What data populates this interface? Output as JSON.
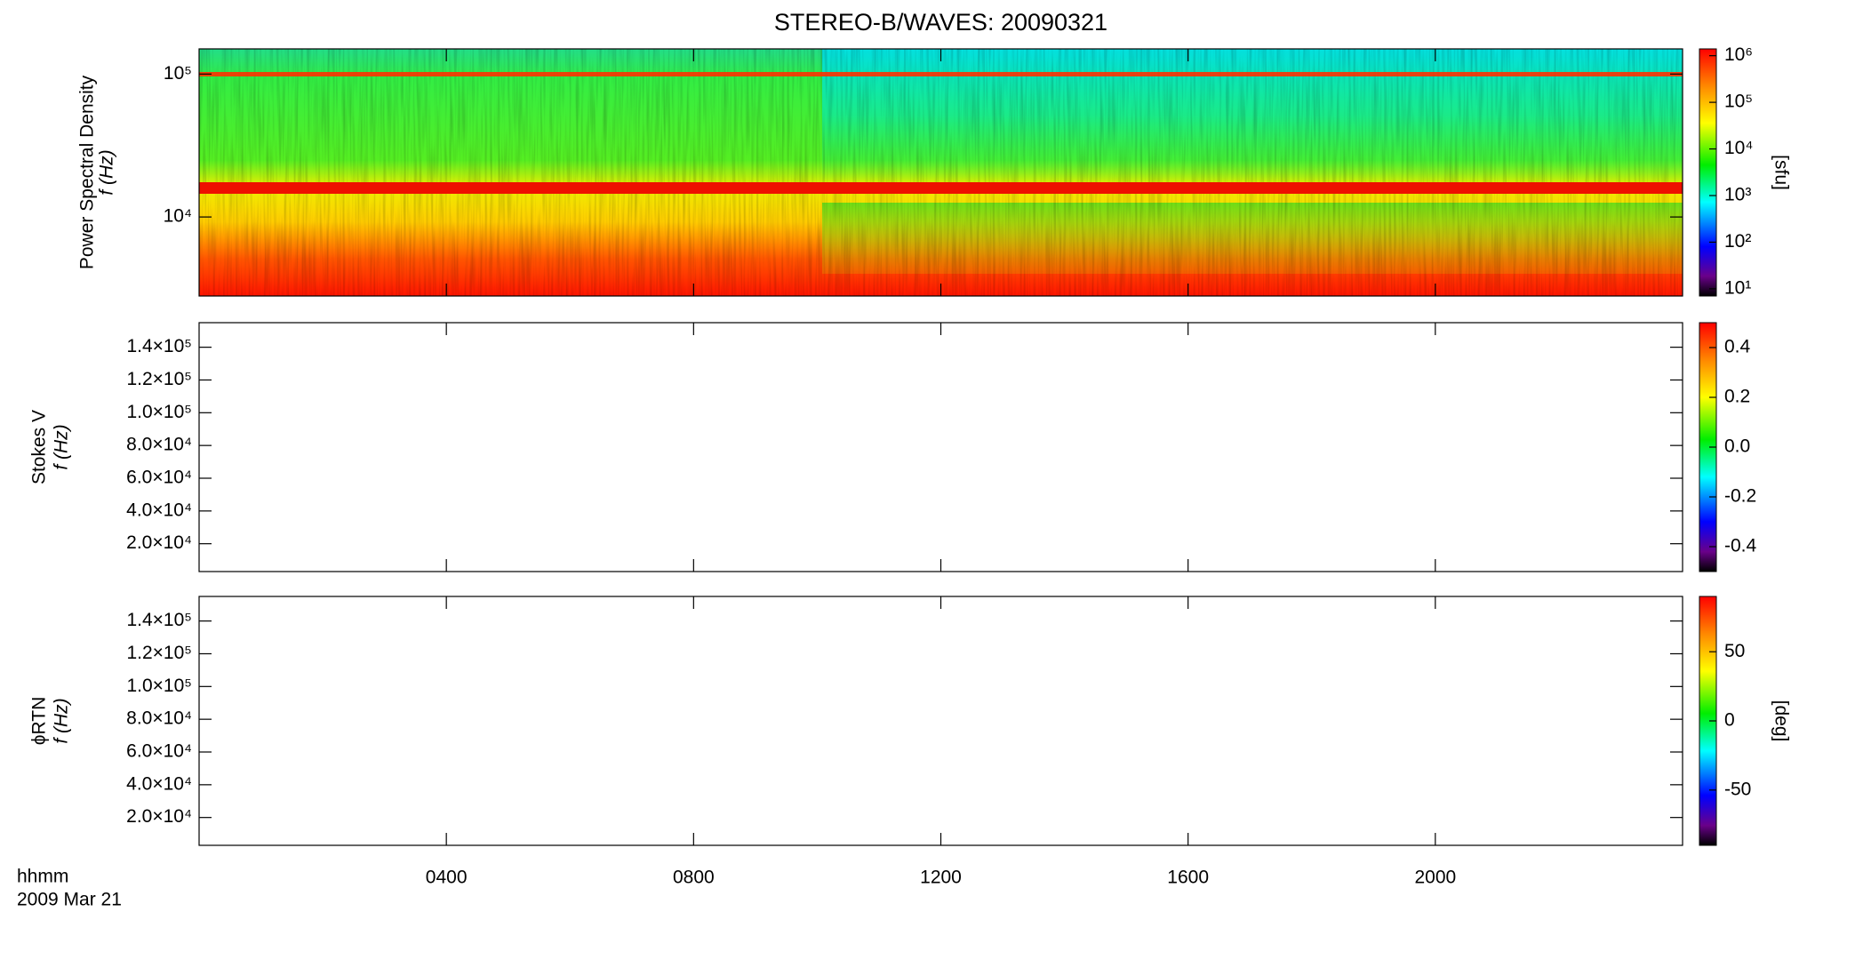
{
  "chart_data": [
    {
      "type": "spectrogram",
      "title": "STEREO-B/WAVES: 20090321",
      "ylabel": [
        "Power Spectral Density",
        "f (Hz)"
      ],
      "ylog": true,
      "ylim": [
        2800,
        150000
      ],
      "yticks": [
        {
          "value": 10000,
          "label": "10⁴"
        },
        {
          "value": 100000,
          "label": "10⁵"
        }
      ],
      "colorbar": {
        "label": "[sfu]",
        "log": true,
        "lim": [
          7,
          1400000
        ],
        "ticks": [
          {
            "value": 10,
            "label": "10¹"
          },
          {
            "value": 100,
            "label": "10²"
          },
          {
            "value": 1000,
            "label": "10³"
          },
          {
            "value": 10000,
            "label": "10⁴"
          },
          {
            "value": 100000,
            "label": "10⁵"
          },
          {
            "value": 1000000,
            "label": "10⁶"
          }
        ]
      }
    },
    {
      "type": "spectrogram",
      "ylabel": [
        "Stokes V",
        "f (Hz)"
      ],
      "ylog": false,
      "ylim": [
        3000,
        155000
      ],
      "yticks": [
        {
          "value": 20000,
          "label": "2.0×10⁴"
        },
        {
          "value": 40000,
          "label": "4.0×10⁴"
        },
        {
          "value": 60000,
          "label": "6.0×10⁴"
        },
        {
          "value": 80000,
          "label": "8.0×10⁴"
        },
        {
          "value": 100000,
          "label": "1.0×10⁵"
        },
        {
          "value": 120000,
          "label": "1.2×10⁵"
        },
        {
          "value": 140000,
          "label": "1.4×10⁵"
        }
      ],
      "colorbar": {
        "log": false,
        "lim": [
          -0.5,
          0.5
        ],
        "ticks": [
          {
            "value": -0.4,
            "label": "-0.4"
          },
          {
            "value": -0.2,
            "label": "-0.2"
          },
          {
            "value": 0,
            "label": "0.0"
          },
          {
            "value": 0.2,
            "label": "0.2"
          },
          {
            "value": 0.4,
            "label": "0.4"
          }
        ]
      }
    },
    {
      "type": "spectrogram",
      "ylabel": [
        "ϕRTN",
        "f (Hz)"
      ],
      "ylog": false,
      "ylim": [
        3000,
        155000
      ],
      "yticks": [
        {
          "value": 20000,
          "label": "2.0×10⁴"
        },
        {
          "value": 40000,
          "label": "4.0×10⁴"
        },
        {
          "value": 60000,
          "label": "6.0×10⁴"
        },
        {
          "value": 80000,
          "label": "8.0×10⁴"
        },
        {
          "value": 100000,
          "label": "1.0×10⁵"
        },
        {
          "value": 120000,
          "label": "1.2×10⁵"
        },
        {
          "value": 140000,
          "label": "1.4×10⁵"
        }
      ],
      "colorbar": {
        "label": "[deg]",
        "log": false,
        "lim": [
          -90,
          90
        ],
        "ticks": [
          -50,
          0,
          50
        ]
      },
      "xlabel": "hhmm",
      "date": "2009 Mar 21",
      "xlim": [
        0,
        24
      ],
      "xticks": [
        {
          "value": 4,
          "label": "0400"
        },
        {
          "value": 8,
          "label": "0800"
        },
        {
          "value": 12,
          "label": "1200"
        },
        {
          "value": 16,
          "label": "1600"
        },
        {
          "value": 20,
          "label": "2000"
        }
      ]
    }
  ]
}
